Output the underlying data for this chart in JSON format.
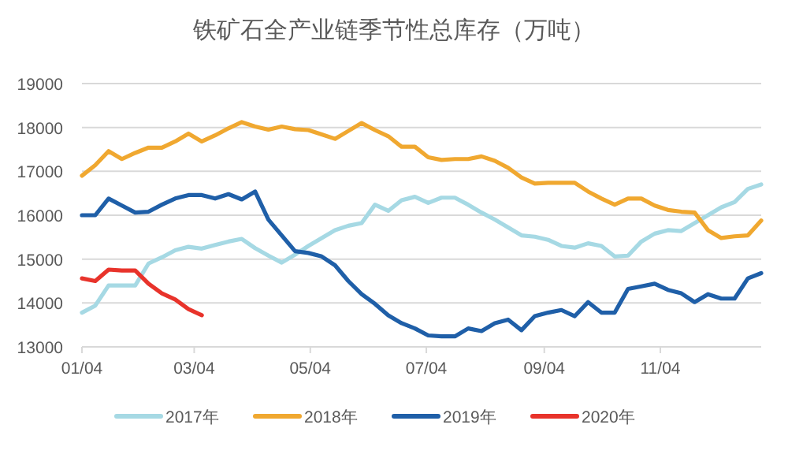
{
  "chart_data": {
    "type": "line",
    "title": "铁矿石全产业链季节性总库存（万吨）",
    "x": [
      "--01-04",
      "--01-11",
      "--01-18",
      "--01-25",
      "--02-01",
      "--02-08",
      "--02-15",
      "--02-22",
      "--03-01",
      "--03-08",
      "--03-15",
      "--03-22",
      "--03-29",
      "--04-05",
      "--04-12",
      "--04-19",
      "--04-26",
      "--05-03",
      "--05-10",
      "--05-17",
      "--05-24",
      "--05-31",
      "--06-07",
      "--06-14",
      "--06-21",
      "--06-28",
      "--07-05",
      "--07-12",
      "--07-19",
      "--07-26",
      "--08-02",
      "--08-09",
      "--08-16",
      "--08-23",
      "--08-30",
      "--09-06",
      "--09-13",
      "--09-20",
      "--09-27",
      "--10-04",
      "--10-11",
      "--10-18",
      "--10-25",
      "--11-01",
      "--11-08",
      "--11-15",
      "--11-22",
      "--11-29",
      "--12-06",
      "--12-13",
      "--12-20",
      "--12-27"
    ],
    "series": [
      {
        "name": "2017年",
        "color": "#a6d9e4",
        "values": [
          13780,
          13940,
          14400,
          14400,
          14400,
          14900,
          15040,
          15200,
          15280,
          15240,
          15320,
          15400,
          15460,
          15250,
          15080,
          14920,
          15100,
          15300,
          15480,
          15660,
          15760,
          15820,
          16240,
          16100,
          16340,
          16420,
          16280,
          16400,
          16400,
          16240,
          16060,
          15900,
          15720,
          15540,
          15510,
          15440,
          15300,
          15260,
          15360,
          15300,
          15060,
          15080,
          15400,
          15580,
          15660,
          15640,
          15820,
          16000,
          16180,
          16300,
          16600,
          16700
        ]
      },
      {
        "name": "2018年",
        "color": "#f0a830",
        "values": [
          16900,
          17140,
          17460,
          17280,
          17420,
          17540,
          17540,
          17680,
          17860,
          17680,
          17820,
          17980,
          18120,
          18020,
          17950,
          18020,
          17960,
          17940,
          17840,
          17740,
          17920,
          18100,
          17940,
          17800,
          17560,
          17560,
          17320,
          17260,
          17280,
          17280,
          17340,
          17240,
          17080,
          16860,
          16720,
          16740,
          16740,
          16740,
          16540,
          16380,
          16240,
          16380,
          16380,
          16220,
          16120,
          16080,
          16060,
          15660,
          15480,
          15520,
          15540,
          15880
        ]
      },
      {
        "name": "2019年",
        "color": "#1f5fa8",
        "values": [
          16000,
          16000,
          16380,
          16220,
          16060,
          16080,
          16240,
          16380,
          16460,
          16460,
          16380,
          16480,
          16360,
          16540,
          15900,
          15540,
          15180,
          15140,
          15060,
          14860,
          14500,
          14200,
          13980,
          13720,
          13540,
          13420,
          13260,
          13240,
          13240,
          13420,
          13360,
          13540,
          13620,
          13380,
          13700,
          13780,
          13840,
          13700,
          14020,
          13780,
          13780,
          14320,
          14380,
          14440,
          14300,
          14220,
          14020,
          14200,
          14100,
          14100,
          14560,
          14680
        ]
      },
      {
        "name": "2020年",
        "color": "#e8332b",
        "x": [
          "--01-04",
          "--01-11",
          "--01-18",
          "--01-25",
          "--02-01",
          "--02-08",
          "--02-15",
          "--02-22",
          "--03-01",
          "--03-08"
        ],
        "values": [
          14560,
          14500,
          14760,
          14740,
          14740,
          14440,
          14220,
          14080,
          13860,
          13720
        ]
      }
    ],
    "xlim": [
      "--01-04",
      "--12-27"
    ],
    "xticks": [
      {
        "value": "--01-04",
        "label": "01/04"
      },
      {
        "value": "--03-04",
        "label": "03/04"
      },
      {
        "value": "--05-04",
        "label": "05/04"
      },
      {
        "value": "--07-04",
        "label": "07/04"
      },
      {
        "value": "--09-04",
        "label": "09/04"
      },
      {
        "value": "--11-04",
        "label": "11/04"
      }
    ],
    "ylim": [
      13000,
      19000
    ],
    "yticks": [
      13000,
      14000,
      15000,
      16000,
      17000,
      18000,
      19000
    ],
    "grid": "y",
    "legend": "bottom",
    "marker": "none",
    "line_style": "solid"
  }
}
